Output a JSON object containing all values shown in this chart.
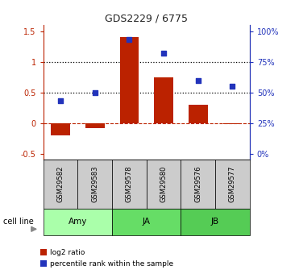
{
  "title": "GDS2229 / 6775",
  "samples": [
    "GSM29582",
    "GSM29583",
    "GSM29578",
    "GSM29580",
    "GSM29576",
    "GSM29577"
  ],
  "log2_ratio": [
    -0.2,
    -0.08,
    1.4,
    0.75,
    0.3,
    -0.02
  ],
  "percentile_rank": [
    43,
    50,
    93,
    82,
    60,
    55
  ],
  "groups": [
    {
      "label": "Amy",
      "indices": [
        0,
        1
      ],
      "color": "#aaffaa"
    },
    {
      "label": "JA",
      "indices": [
        2,
        3
      ],
      "color": "#66dd66"
    },
    {
      "label": "JB",
      "indices": [
        4,
        5
      ],
      "color": "#55cc55"
    }
  ],
  "bar_color": "#bb2200",
  "scatter_color": "#2233bb",
  "ylim_left": [
    -0.6,
    1.6
  ],
  "yticks_left": [
    -0.5,
    0.0,
    0.5,
    1.0,
    1.5
  ],
  "ytick_labels_left": [
    "-0.5",
    "0",
    "0.5",
    "1",
    "1.5"
  ],
  "ytick_labels_right": [
    "0%",
    "25%",
    "50%",
    "75%",
    "100%"
  ],
  "right_ylim": [
    -5.0,
    105.0
  ],
  "legend_labels": [
    "log2 ratio",
    "percentile rank within the sample"
  ],
  "legend_colors": [
    "#bb2200",
    "#2233bb"
  ],
  "cell_line_label": "cell line",
  "gsm_box_color": "#cccccc",
  "background_color": "#ffffff",
  "bar_width": 0.55
}
